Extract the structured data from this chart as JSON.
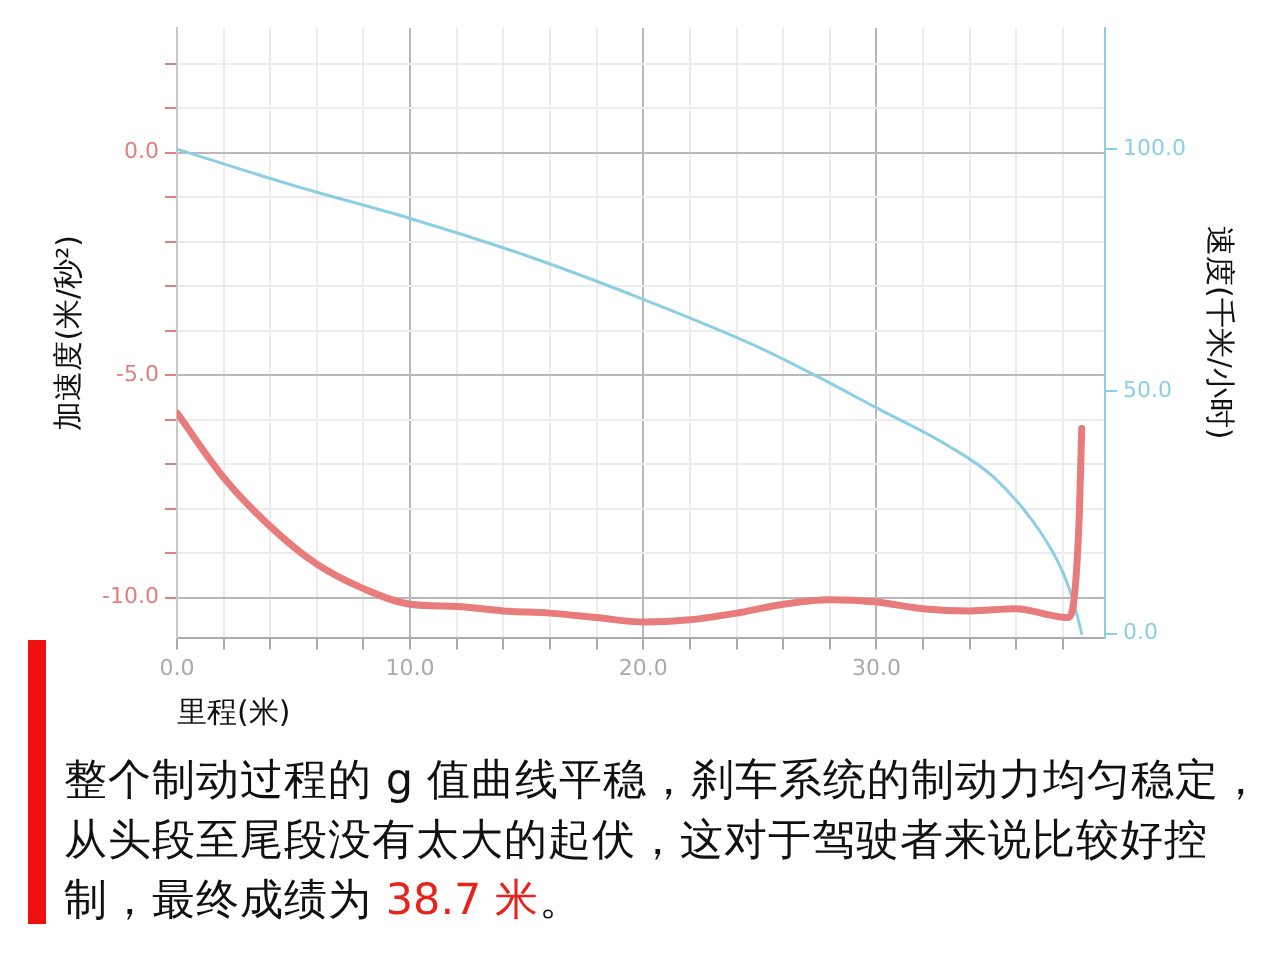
{
  "chart_data": {
    "type": "line",
    "xlabel": "里程(米)",
    "ylabel": "加速度(米/秒²)",
    "y2label": "速度(千米/小时)",
    "xlim": [
      0,
      39.8
    ],
    "xticks": [
      {
        "value": 0,
        "label": "0.0"
      },
      {
        "value": 2,
        "label": null
      },
      {
        "value": 4,
        "label": null
      },
      {
        "value": 6,
        "label": null
      },
      {
        "value": 8,
        "label": null
      },
      {
        "value": 10,
        "label": "10.0"
      },
      {
        "value": 12,
        "label": null
      },
      {
        "value": 14,
        "label": null
      },
      {
        "value": 16,
        "label": null
      },
      {
        "value": 18,
        "label": null
      },
      {
        "value": 20,
        "label": "20.0"
      },
      {
        "value": 22,
        "label": null
      },
      {
        "value": 24,
        "label": null
      },
      {
        "value": 26,
        "label": null
      },
      {
        "value": 28,
        "label": null
      },
      {
        "value": 30,
        "label": "30.0"
      },
      {
        "value": 32,
        "label": null
      },
      {
        "value": 34,
        "label": null
      },
      {
        "value": 36,
        "label": null
      },
      {
        "value": 38,
        "label": null
      }
    ],
    "ylim": [
      -10.9,
      2.8
    ],
    "yticks": [
      {
        "value": -10,
        "label": "-10.0"
      },
      {
        "value": -9,
        "label": null
      },
      {
        "value": -8,
        "label": null
      },
      {
        "value": -7,
        "label": null
      },
      {
        "value": -6,
        "label": null
      },
      {
        "value": -5,
        "label": "-5.0"
      },
      {
        "value": -4,
        "label": null
      },
      {
        "value": -3,
        "label": null
      },
      {
        "value": -2,
        "label": null
      },
      {
        "value": -1,
        "label": null
      },
      {
        "value": 0,
        "label": "0.0"
      },
      {
        "value": 1,
        "label": null
      },
      {
        "value": 2,
        "label": null
      }
    ],
    "y2lim": [
      -0.8,
      125
    ],
    "y2ticks": [
      {
        "value": 0,
        "label": "0.0"
      },
      {
        "value": 50,
        "label": "50.0"
      },
      {
        "value": 100,
        "label": "100.0"
      }
    ],
    "grid": true,
    "legend": false,
    "marker": "none",
    "line_style": "solid",
    "series": [
      {
        "color": "#e87c7c",
        "x": [
          0,
          2,
          4,
          6,
          8,
          10,
          12,
          14,
          16,
          18,
          20,
          22,
          24,
          26,
          28,
          30,
          32,
          34,
          36,
          37.5,
          38.2,
          38.5,
          38.7,
          38.8
        ],
        "values": [
          -5.85,
          -7.3,
          -8.4,
          -9.25,
          -9.8,
          -10.15,
          -10.2,
          -10.3,
          -10.35,
          -10.45,
          -10.55,
          -10.5,
          -10.35,
          -10.15,
          -10.05,
          -10.1,
          -10.25,
          -10.3,
          -10.25,
          -10.4,
          -10.45,
          -9.9,
          -8.1,
          -6.2
        ]
      },
      {
        "color": "#8ccfe4",
        "axis": "y2",
        "x": [
          0,
          5,
          10,
          15,
          20,
          25,
          27.5,
          30,
          33,
          35,
          37,
          38,
          38.5,
          38.8
        ],
        "values": [
          100,
          92.5,
          85.7,
          78,
          69,
          59,
          53,
          46.6,
          39,
          32.4,
          21.2,
          12.6,
          5.7,
          0
        ]
      }
    ],
    "annotations": [
      "整个制动过程的 g 值曲线平稳，刹车系统的制动力均匀稳定，从头段至尾段没有太大的起伏，这对于驾驶者来说比较好控制，最终成绩为 ",
      "38.7 米",
      "。"
    ]
  }
}
